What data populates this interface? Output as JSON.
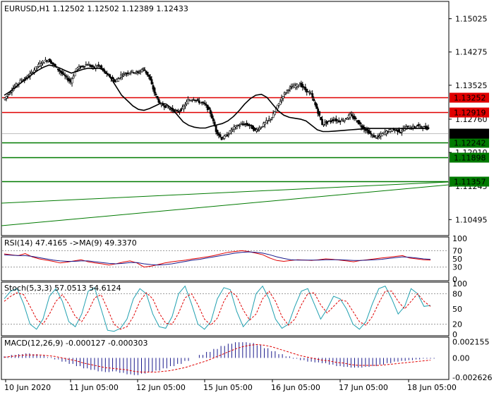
{
  "header": {
    "main": "EURUSD,H1  1.12502 1.12502 1.12389 1.12433",
    "rsi": "RSI(14) 47.4165  ->MA(9) 49.3370",
    "stoch": "Stoch(5,3,3) 57.0513 54.6124",
    "macd": "MACD(12,26,9) -0.000127 -0.000303"
  },
  "price_axis": {
    "ticks": [
      "1.15025",
      "1.14275",
      "1.13525",
      "1.12760",
      "1.12010",
      "1.11245",
      "1.10495"
    ]
  },
  "levels": [
    {
      "label": "1.13252",
      "value": 1.13252,
      "color": "#e00000"
    },
    {
      "label": "1.12919",
      "value": 1.12919,
      "color": "#e00000"
    },
    {
      "label": "1.12242",
      "value": 1.12242,
      "color": "#007a00"
    },
    {
      "label": "1.11898",
      "value": 1.11898,
      "color": "#007a00"
    },
    {
      "label": "1.11357",
      "value": 1.11357,
      "color": "#007a00"
    }
  ],
  "current_price": {
    "label": "1.12433",
    "value": 1.12433
  },
  "rsi_axis": [
    "100",
    "70",
    "50",
    "30",
    "0"
  ],
  "stoch_axis": [
    "100",
    "80",
    "50",
    "20",
    "0"
  ],
  "macd_axis": [
    "0.002155",
    "0.00",
    "-0.002626"
  ],
  "time_axis": [
    "10 Jun 2020",
    "11 Jun 05:00",
    "12 Jun 05:00",
    "15 Jun 05:00",
    "16 Jun 05:00",
    "17 Jun 05:00",
    "18 Jun 05:00"
  ],
  "chart_data": {
    "type": "candlestick",
    "symbol": "EURUSD",
    "timeframe": "H1",
    "ylim": [
      1.1015,
      1.154
    ],
    "close_path": [
      1.132,
      1.1335,
      1.135,
      1.1362,
      1.1368,
      1.138,
      1.1395,
      1.1405,
      1.141,
      1.1398,
      1.1385,
      1.1372,
      1.136,
      1.139,
      1.1395,
      1.14,
      1.1392,
      1.1398,
      1.1382,
      1.1372,
      1.136,
      1.1375,
      1.138,
      1.1384,
      1.138,
      1.139,
      1.1372,
      1.1335,
      1.131,
      1.1305,
      1.1298,
      1.1292,
      1.13,
      1.1318,
      1.1322,
      1.1315,
      1.131,
      1.129,
      1.125,
      1.1232,
      1.124,
      1.1255,
      1.1262,
      1.1265,
      1.1262,
      1.125,
      1.1258,
      1.127,
      1.128,
      1.1305,
      1.133,
      1.1345,
      1.135,
      1.1355,
      1.1342,
      1.1332,
      1.13,
      1.1265,
      1.127,
      1.1275,
      1.1272,
      1.1275,
      1.1285,
      1.1275,
      1.126,
      1.125,
      1.1238,
      1.1235,
      1.1245,
      1.125,
      1.1252,
      1.1248,
      1.1258,
      1.1256,
      1.1262,
      1.1258,
      1.1255
    ],
    "ma_path": [
      1.133,
      1.1338,
      1.1348,
      1.1358,
      1.1368,
      1.1377,
      1.1386,
      1.1393,
      1.1398,
      1.1396,
      1.1391,
      1.1385,
      1.138,
      1.1384,
      1.1388,
      1.1391,
      1.139,
      1.1391,
      1.1385,
      1.137,
      1.135,
      1.133,
      1.1318,
      1.1306,
      1.1298,
      1.1296,
      1.13,
      1.1306,
      1.1312,
      1.131,
      1.13,
      1.1285,
      1.127,
      1.1262,
      1.1258,
      1.1256,
      1.1256,
      1.126,
      1.1263,
      1.1266,
      1.1272,
      1.1282,
      1.1295,
      1.131,
      1.1322,
      1.133,
      1.1332,
      1.1325,
      1.131,
      1.1295,
      1.1285,
      1.128,
      1.1278,
      1.1276,
      1.1272,
      1.1262,
      1.1252,
      1.1248,
      1.1248,
      1.1249,
      1.125,
      1.1251,
      1.1252,
      1.1253,
      1.1254,
      1.1255,
      1.1255,
      1.1255,
      1.1255,
      1.1255,
      1.1255,
      1.1255,
      1.1255,
      1.1255,
      1.1255,
      1.1255,
      1.1255
    ],
    "rsi_values": [
      62,
      60,
      58,
      63,
      55,
      50,
      47,
      44,
      40,
      42,
      45,
      48,
      43,
      40,
      38,
      35,
      38,
      42,
      45,
      40,
      30,
      32,
      36,
      40,
      43,
      45,
      47,
      50,
      52,
      55,
      58,
      62,
      66,
      68,
      70,
      68,
      64,
      60,
      52,
      46,
      44,
      46,
      48,
      47,
      46,
      48,
      50,
      49,
      47,
      45,
      43,
      46,
      48,
      50,
      52,
      54,
      56,
      58,
      52,
      50,
      48,
      47
    ],
    "rsi_ma_values": [
      60,
      59,
      58,
      58,
      56,
      53,
      50,
      47,
      45,
      44,
      44,
      45,
      45,
      43,
      41,
      39,
      38,
      39,
      41,
      41,
      38,
      36,
      35,
      36,
      38,
      41,
      44,
      47,
      49,
      52,
      55,
      58,
      61,
      64,
      66,
      67,
      66,
      64,
      60,
      55,
      51,
      48,
      47,
      47,
      47,
      47,
      48,
      48,
      48,
      47,
      46,
      46,
      47,
      48,
      49,
      51,
      53,
      55,
      54,
      52,
      50,
      49
    ],
    "stoch_k_values": [
      70,
      85,
      90,
      60,
      20,
      10,
      30,
      75,
      90,
      65,
      25,
      15,
      40,
      85,
      92,
      50,
      8,
      6,
      12,
      30,
      70,
      90,
      80,
      40,
      15,
      12,
      35,
      80,
      95,
      60,
      20,
      10,
      25,
      70,
      92,
      88,
      45,
      15,
      30,
      80,
      95,
      70,
      30,
      12,
      20,
      55,
      85,
      90,
      60,
      30,
      50,
      75,
      70,
      50,
      20,
      10,
      25,
      60,
      90,
      95,
      70,
      40,
      55,
      90,
      80,
      55,
      57
    ],
    "stoch_d_values": [
      65,
      75,
      82,
      78,
      55,
      30,
      20,
      40,
      65,
      78,
      60,
      35,
      25,
      45,
      72,
      78,
      50,
      20,
      10,
      15,
      35,
      65,
      82,
      70,
      42,
      22,
      20,
      42,
      72,
      80,
      58,
      30,
      18,
      32,
      65,
      85,
      75,
      48,
      28,
      40,
      70,
      85,
      65,
      35,
      18,
      30,
      58,
      80,
      82,
      58,
      42,
      55,
      68,
      65,
      45,
      25,
      18,
      35,
      62,
      85,
      85,
      65,
      50,
      65,
      80,
      65,
      55
    ],
    "macd_values": [
      0.0002,
      0.0004,
      0.0005,
      0.0006,
      0.0005,
      0.0003,
      0.0001,
      -0.0002,
      -0.0005,
      -0.0008,
      -0.0011,
      -0.0014,
      -0.0016,
      -0.0018,
      -0.0019,
      -0.0018,
      -0.002,
      -0.0022,
      -0.0023,
      -0.0021,
      -0.0019,
      -0.0017,
      -0.0014,
      -0.0011,
      -0.0008,
      -0.0004,
      0.0,
      0.0004,
      0.0008,
      0.0012,
      0.0016,
      0.0019,
      0.0021,
      0.0021,
      0.002,
      0.0017,
      0.0013,
      0.0009,
      0.0005,
      0.0002,
      -0.0001,
      -0.0003,
      -0.0005,
      -0.0006,
      -0.0007,
      -0.0009,
      -0.0011,
      -0.0012,
      -0.0013,
      -0.0013,
      -0.0012,
      -0.0011,
      -0.0009,
      -0.0007,
      -0.0005,
      -0.0004,
      -0.0003,
      -0.0002,
      -0.0001,
      -0.0001
    ],
    "macd_signal_values": [
      0.0001,
      0.0002,
      0.0003,
      0.0004,
      0.0004,
      0.0004,
      0.0003,
      0.0002,
      0.0,
      -0.0002,
      -0.0004,
      -0.0007,
      -0.0009,
      -0.0011,
      -0.0013,
      -0.0014,
      -0.0015,
      -0.0016,
      -0.0018,
      -0.0019,
      -0.0019,
      -0.0019,
      -0.0018,
      -0.0017,
      -0.0015,
      -0.0013,
      -0.001,
      -0.0007,
      -0.0004,
      0.0,
      0.0004,
      0.0008,
      0.0012,
      0.0015,
      0.0017,
      0.0018,
      0.0017,
      0.0015,
      0.0012,
      0.0009,
      0.0006,
      0.0003,
      0.0001,
      -0.0001,
      -0.0003,
      -0.0004,
      -0.0006,
      -0.0007,
      -0.0009,
      -0.001,
      -0.001,
      -0.001,
      -0.001,
      -0.0009,
      -0.0008,
      -0.0007,
      -0.0006,
      -0.0005,
      -0.0004,
      -0.0003
    ]
  }
}
